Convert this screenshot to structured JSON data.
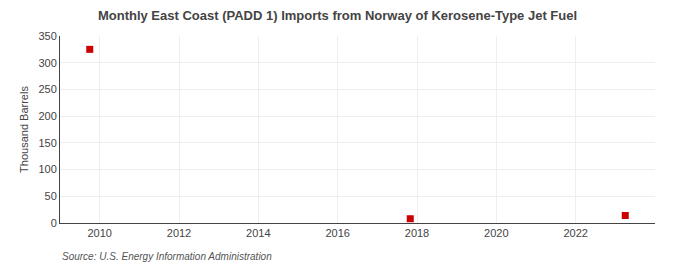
{
  "chart_data": {
    "type": "scatter",
    "title": "Monthly East Coast (PADD 1) Imports from Norway of Kerosene-Type Jet Fuel",
    "ylabel": "Thousand Barrels",
    "annotations": [
      "Source: U.S. Energy Information Administration"
    ],
    "x": [
      2009.75,
      2017.83,
      2023.25
    ],
    "values": [
      325,
      8,
      14
    ],
    "color": "#cc0000",
    "marker": "square",
    "xlim": [
      2009.0,
      2024.0
    ],
    "ylim": [
      0,
      350
    ],
    "xticks": [
      2010,
      2012,
      2014,
      2016,
      2018,
      2020,
      2022
    ],
    "yticks": [
      0,
      50,
      100,
      150,
      200,
      250,
      300,
      350
    ],
    "grid": true
  }
}
